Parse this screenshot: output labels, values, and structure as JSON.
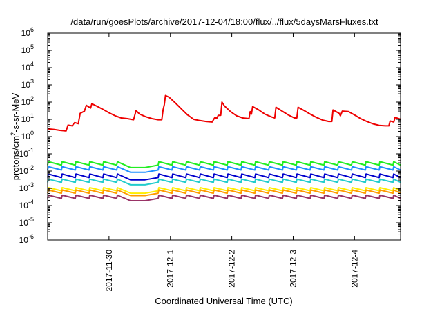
{
  "chart_data": {
    "type": "line",
    "title": "/data/run/goesPlots/archive/2017-12-04/18:00/flux/../flux/5daysMarsFluxes.txt",
    "xlabel": "Coordinated Universal Time (UTC)",
    "ylabel": {
      "prefix": "protons/cm",
      "sup": "2",
      "suffix": "-s-sr-MeV"
    },
    "yscale": "log",
    "ylim": [
      1e-06,
      1000000.0
    ],
    "xlim": [
      "2017-11-29T00:00",
      "2017-12-04T18:00"
    ],
    "grid": false,
    "legend": "none",
    "y_ticks": [
      {
        "value": 1e-06,
        "base": "10",
        "exp": "-6"
      },
      {
        "value": 1e-05,
        "base": "10",
        "exp": "-5"
      },
      {
        "value": 0.0001,
        "base": "10",
        "exp": "-4"
      },
      {
        "value": 0.001,
        "base": "10",
        "exp": "-3"
      },
      {
        "value": 0.01,
        "base": "10",
        "exp": "-2"
      },
      {
        "value": 0.1,
        "base": "10",
        "exp": "-1"
      },
      {
        "value": 1,
        "base": "10",
        "exp": "0"
      },
      {
        "value": 10,
        "base": "10",
        "exp": "1"
      },
      {
        "value": 100,
        "base": "10",
        "exp": "2"
      },
      {
        "value": 1000,
        "base": "10",
        "exp": "3"
      },
      {
        "value": 10000,
        "base": "10",
        "exp": "4"
      },
      {
        "value": 100000,
        "base": "10",
        "exp": "5"
      },
      {
        "value": 1000000,
        "base": "10",
        "exp": "6"
      }
    ],
    "x_ticks": [
      {
        "value": "2017-11-30T00:00",
        "label": "2017-11-30"
      },
      {
        "value": "2017-12-01T00:00",
        "label": "2017-12-1"
      },
      {
        "value": "2017-12-02T00:00",
        "label": "2017-12-2"
      },
      {
        "value": "2017-12-03T00:00",
        "label": "2017-12-3"
      },
      {
        "value": "2017-12-04T00:00",
        "label": "2017-12-4"
      }
    ],
    "series": [
      {
        "color": "#ee0000",
        "points": [
          [
            "2017-11-29T00:00",
            2.8
          ],
          [
            "2017-11-29T02:24",
            2.6
          ],
          [
            "2017-11-29T04:48",
            2.3
          ],
          [
            "2017-11-29T07:12",
            2.1
          ],
          [
            "2017-11-29T07:58",
            4.6
          ],
          [
            "2017-11-29T09:36",
            4.2
          ],
          [
            "2017-11-29T10:34",
            6.5
          ],
          [
            "2017-11-29T12:00",
            5.6
          ],
          [
            "2017-11-29T12:43",
            22
          ],
          [
            "2017-11-29T14:24",
            30
          ],
          [
            "2017-11-29T15:07",
            65
          ],
          [
            "2017-11-29T16:48",
            45
          ],
          [
            "2017-11-29T17:17",
            80
          ],
          [
            "2017-11-29T19:12",
            58
          ],
          [
            "2017-11-29T21:36",
            38
          ],
          [
            "2017-11-30T00:00",
            24
          ],
          [
            "2017-11-30T02:24",
            16
          ],
          [
            "2017-11-30T04:48",
            12
          ],
          [
            "2017-11-30T07:12",
            11
          ],
          [
            "2017-11-30T09:36",
            9.5
          ],
          [
            "2017-11-30T10:34",
            32
          ],
          [
            "2017-11-30T12:00",
            20
          ],
          [
            "2017-11-30T14:24",
            14
          ],
          [
            "2017-11-30T16:48",
            11
          ],
          [
            "2017-11-30T19:12",
            9.5
          ],
          [
            "2017-11-30T20:38",
            9.5
          ],
          [
            "2017-11-30T21:07",
            35
          ],
          [
            "2017-11-30T21:36",
            70
          ],
          [
            "2017-11-30T22:05",
            240
          ],
          [
            "2017-11-30T23:31",
            190
          ],
          [
            "2017-12-01T01:55",
            90
          ],
          [
            "2017-12-01T04:19",
            40
          ],
          [
            "2017-12-01T06:43",
            18
          ],
          [
            "2017-12-01T09:07",
            10
          ],
          [
            "2017-12-01T11:31",
            8.5
          ],
          [
            "2017-12-01T13:55",
            7.5
          ],
          [
            "2017-12-01T16:19",
            7
          ],
          [
            "2017-12-01T17:17",
            12
          ],
          [
            "2017-12-01T18:14",
            12
          ],
          [
            "2017-12-01T18:43",
            17
          ],
          [
            "2017-12-01T19:41",
            17
          ],
          [
            "2017-12-01T20:10",
            100
          ],
          [
            "2017-12-01T21:07",
            60
          ],
          [
            "2017-12-01T23:31",
            28
          ],
          [
            "2017-12-02T01:55",
            16
          ],
          [
            "2017-12-02T04:19",
            12
          ],
          [
            "2017-12-02T06:43",
            11
          ],
          [
            "2017-12-02T07:12",
            28
          ],
          [
            "2017-12-02T07:41",
            20
          ],
          [
            "2017-12-02T08:10",
            55
          ],
          [
            "2017-12-02T10:34",
            35
          ],
          [
            "2017-12-02T12:58",
            20
          ],
          [
            "2017-12-02T15:22",
            14
          ],
          [
            "2017-12-02T16:48",
            12
          ],
          [
            "2017-12-02T17:17",
            50
          ],
          [
            "2017-12-02T19:41",
            30
          ],
          [
            "2017-12-02T22:05",
            18
          ],
          [
            "2017-12-03T00:29",
            12
          ],
          [
            "2017-12-03T01:26",
            12
          ],
          [
            "2017-12-03T01:55",
            50
          ],
          [
            "2017-12-03T04:19",
            32
          ],
          [
            "2017-12-03T06:43",
            20
          ],
          [
            "2017-12-03T09:07",
            13
          ],
          [
            "2017-12-03T11:31",
            9
          ],
          [
            "2017-12-03T13:55",
            7.5
          ],
          [
            "2017-12-03T15:07",
            7.5
          ],
          [
            "2017-12-03T15:36",
            35
          ],
          [
            "2017-12-03T18:00",
            22
          ],
          [
            "2017-12-03T18:29",
            16
          ],
          [
            "2017-12-03T19:12",
            30
          ],
          [
            "2017-12-03T21:36",
            28
          ],
          [
            "2017-12-04T00:00",
            18
          ],
          [
            "2017-12-04T02:24",
            11
          ],
          [
            "2017-12-04T04:48",
            7.5
          ],
          [
            "2017-12-04T07:12",
            5.5
          ],
          [
            "2017-12-04T09:36",
            4.5
          ],
          [
            "2017-12-04T12:00",
            4.2
          ],
          [
            "2017-12-04T13:26",
            4.2
          ],
          [
            "2017-12-04T13:55",
            8
          ],
          [
            "2017-12-04T15:22",
            7
          ],
          [
            "2017-12-04T15:50",
            13
          ],
          [
            "2017-12-04T17:17",
            11
          ],
          [
            "2017-12-04T18:00",
            10
          ]
        ]
      },
      {
        "color": "#22ee22",
        "base": 0.022,
        "amp": 0.035,
        "dip": 0.016
      },
      {
        "color": "#1e90ff",
        "base": 0.0115,
        "amp": 0.018,
        "dip": 0.0085
      },
      {
        "color": "#0000cc",
        "base": 0.0042,
        "amp": 0.0068,
        "dip": 0.0031
      },
      {
        "color": "#22cccc",
        "base": 0.0022,
        "amp": 0.0034,
        "dip": 0.0016
      },
      {
        "color": "#ffee00",
        "base": 0.00072,
        "amp": 0.0011,
        "dip": 0.00052
      },
      {
        "color": "#ff9900",
        "base": 0.00052,
        "amp": 0.0008,
        "dip": 0.00038
      },
      {
        "color": "#993366",
        "base": 0.00026,
        "amp": 0.0004,
        "dip": 0.00019
      }
    ]
  }
}
